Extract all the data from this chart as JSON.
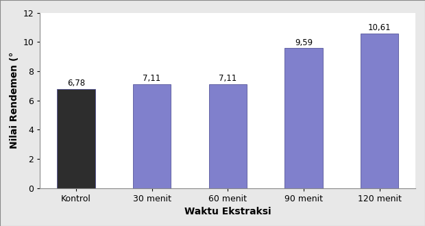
{
  "categories": [
    "Kontrol",
    "30 menit",
    "60 menit",
    "90 menit",
    "120 menit"
  ],
  "values": [
    6.78,
    7.11,
    7.11,
    9.59,
    10.61
  ],
  "bar_colors": [
    "#2d2d2d",
    "#8080cc",
    "#8080cc",
    "#8080cc",
    "#8080cc"
  ],
  "bar_edgecolor": "#555599",
  "xlabel": "Waktu Ekstraksi",
  "ylabel": "Nilai Rendemen (°",
  "ylim": [
    0,
    12
  ],
  "yticks": [
    0,
    2,
    4,
    6,
    8,
    10,
    12
  ],
  "label_fontsize": 10,
  "tick_fontsize": 9,
  "value_labels": [
    "6,78",
    "7,11",
    "7,11",
    "9,59",
    "10,61"
  ],
  "background_color": "#e8e8e8",
  "plot_bg_color": "#ffffff",
  "figure_border_color": "#aaaaaa"
}
